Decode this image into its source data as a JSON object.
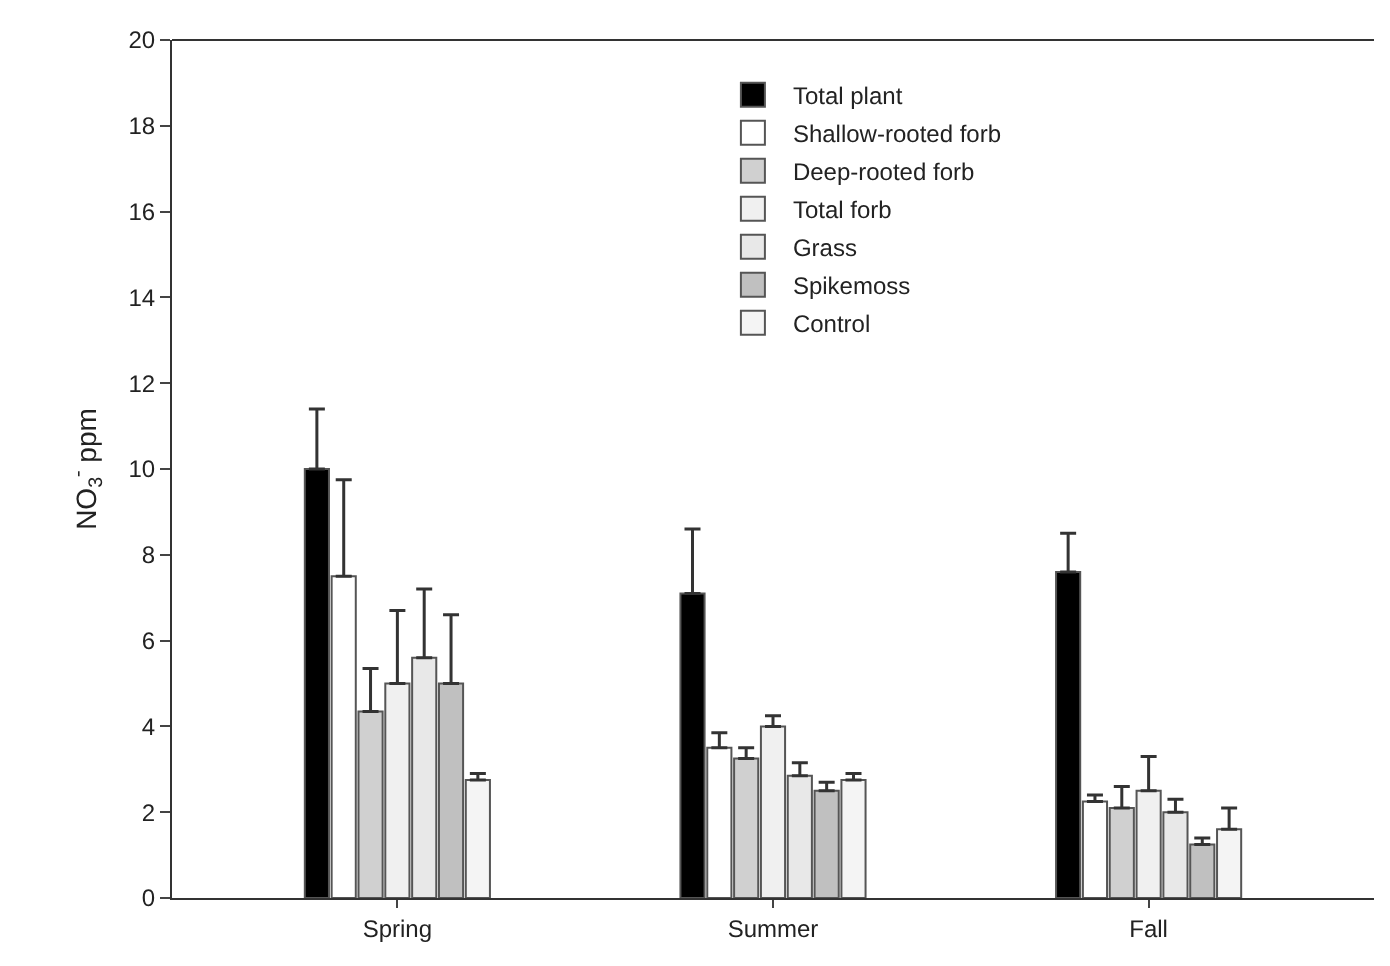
{
  "chart_data": {
    "type": "bar",
    "ylabel": "NO$_{3}$$^{-}$ ppm",
    "categories": [
      "Spring",
      "Summer",
      "Fall"
    ],
    "ylim": [
      0,
      20
    ],
    "yticks": [
      0,
      2,
      4,
      6,
      8,
      10,
      12,
      14,
      16,
      18,
      20
    ],
    "grid": false,
    "legend": "top",
    "series": [
      {
        "name": "Total plant",
        "color": "#000000",
        "values": [
          10.0,
          7.1,
          7.6
        ],
        "errors": [
          [
            10.0,
            11.4
          ],
          [
            7.1,
            8.6
          ],
          [
            7.6,
            8.5
          ]
        ]
      },
      {
        "name": "Shallow-rooted forb",
        "color": "#ffffff",
        "values": [
          7.5,
          3.5,
          2.25
        ],
        "errors": [
          [
            7.5,
            9.75
          ],
          [
            3.5,
            3.85
          ],
          [
            2.25,
            2.4
          ]
        ]
      },
      {
        "name": "Deep-rooted forb",
        "color": "#d0d0d0",
        "values": [
          4.35,
          3.25,
          2.1
        ],
        "errors": [
          [
            4.35,
            5.35
          ],
          [
            3.25,
            3.5
          ],
          [
            2.1,
            2.6
          ]
        ]
      },
      {
        "name": "Total forb",
        "color": "#f0f0f0",
        "values": [
          5.0,
          4.0,
          2.5
        ],
        "errors": [
          [
            5.0,
            6.7
          ],
          [
            4.0,
            4.25
          ],
          [
            2.5,
            3.3
          ]
        ]
      },
      {
        "name": "Grass",
        "color": "#e8e8e8",
        "values": [
          5.6,
          2.85,
          2.0
        ],
        "errors": [
          [
            5.6,
            7.2
          ],
          [
            2.85,
            3.15
          ],
          [
            2.0,
            2.3
          ]
        ]
      },
      {
        "name": "Spikemoss",
        "color": "#c0c0c0",
        "values": [
          5.0,
          2.5,
          1.25
        ],
        "errors": [
          [
            5.0,
            6.6
          ],
          [
            2.5,
            2.7
          ],
          [
            1.25,
            1.4
          ]
        ]
      },
      {
        "name": "Control",
        "color": "#f4f4f4",
        "values": [
          2.75,
          2.75,
          1.6
        ],
        "errors": [
          [
            2.75,
            2.9
          ],
          [
            2.75,
            2.9
          ],
          [
            1.6,
            2.1
          ]
        ]
      }
    ]
  }
}
